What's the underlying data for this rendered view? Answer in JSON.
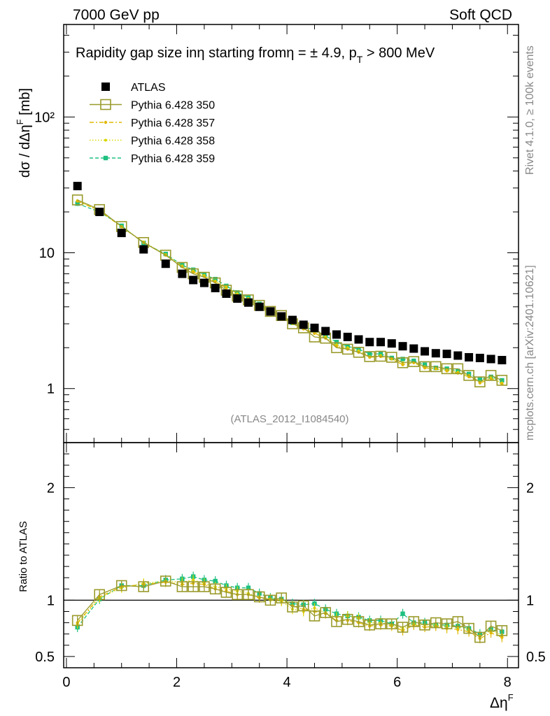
{
  "header": {
    "left": "7000 GeV pp",
    "right": "Soft QCD"
  },
  "side_labels": {
    "rivet": "Rivet 4.1.0, ≥ 100k events",
    "mcplots": "mcplots.cern.ch [arXiv:2401.10621]"
  },
  "chart_data": {
    "type": "scatter",
    "title": "Rapidity gap size inη starting fromη = ± 4.9, p_T > 800 MeV",
    "title_parts": {
      "main": "Rapidity gap size inη starting fromη = ± 4.9, p",
      "sub": "T",
      "tail": " > 800 MeV"
    },
    "watermark": "(ATLAS_2012_I1084540)",
    "xlabel": "Δη",
    "xlabel_sup": "F",
    "ylabel": "dσ / dΔη",
    "ylabel_sup": "F",
    "ylabel_unit": " [mb]",
    "ratio_ylabel": "Ratio to ATLAS",
    "xlim": [
      -0.05,
      8.2
    ],
    "ylim": [
      0.4,
      480
    ],
    "ratio_ylim": [
      0.4,
      2.4
    ],
    "yscale": "log",
    "x_ticks": [
      0,
      2,
      4,
      6,
      8
    ],
    "x_tick_labels": [
      "0",
      "2",
      "4",
      "6",
      "8"
    ],
    "y_ticks": [
      1,
      10,
      100
    ],
    "y_tick_labels": [
      "1",
      "10",
      "10²"
    ],
    "ratio_y_ticks": [
      0.5,
      1,
      2
    ],
    "ratio_y_tick_labels": [
      "0.5",
      "1",
      "2"
    ],
    "x": [
      0.2,
      0.6,
      1.0,
      1.4,
      1.8,
      2.1,
      2.3,
      2.5,
      2.7,
      2.9,
      3.1,
      3.3,
      3.5,
      3.7,
      3.9,
      4.1,
      4.3,
      4.5,
      4.7,
      4.9,
      5.1,
      5.3,
      5.5,
      5.7,
      5.9,
      6.1,
      6.3,
      6.5,
      6.7,
      6.9,
      7.1,
      7.3,
      7.5,
      7.7,
      7.9
    ],
    "series": [
      {
        "name": "ATLAS",
        "color": "#000000",
        "marker": "filled-square",
        "values": [
          31,
          20,
          14,
          10.6,
          8.3,
          7.0,
          6.3,
          6.0,
          5.5,
          5.0,
          4.6,
          4.3,
          4.0,
          3.7,
          3.4,
          3.2,
          2.95,
          2.8,
          2.65,
          2.5,
          2.4,
          2.3,
          2.2,
          2.2,
          2.15,
          2.05,
          1.97,
          1.88,
          1.82,
          1.8,
          1.75,
          1.7,
          1.68,
          1.65,
          1.62
        ]
      },
      {
        "name": "Pythia 6.428 350",
        "color": "#9a9a2c",
        "marker": "open-square",
        "line": "solid",
        "values": [
          24.5,
          20.8,
          15.6,
          11.9,
          9.6,
          7.8,
          7.0,
          6.6,
          6.0,
          5.3,
          4.8,
          4.5,
          4.1,
          3.7,
          3.45,
          3.0,
          2.8,
          2.4,
          2.35,
          2.0,
          1.95,
          1.85,
          1.72,
          1.73,
          1.7,
          1.55,
          1.58,
          1.45,
          1.45,
          1.4,
          1.4,
          1.25,
          1.12,
          1.25,
          1.15
        ],
        "ratio": [
          0.82,
          1.05,
          1.13,
          1.12,
          1.17,
          1.12,
          1.12,
          1.12,
          1.1,
          1.07,
          1.05,
          1.05,
          1.03,
          1.0,
          1.02,
          0.94,
          0.95,
          0.86,
          0.89,
          0.81,
          0.83,
          0.81,
          0.78,
          0.79,
          0.79,
          0.76,
          0.81,
          0.78,
          0.8,
          0.79,
          0.81,
          0.75,
          0.67,
          0.77,
          0.73
        ]
      },
      {
        "name": "Pythia 6.428 357",
        "color": "#e0b800",
        "marker": "star",
        "line": "dashdot",
        "values": [
          24.0,
          20.4,
          15.5,
          11.9,
          9.6,
          7.9,
          7.2,
          6.7,
          6.1,
          5.5,
          4.9,
          4.5,
          4.1,
          3.75,
          3.4,
          3.05,
          2.75,
          2.55,
          2.35,
          2.05,
          1.95,
          1.85,
          1.7,
          1.72,
          1.65,
          1.5,
          1.55,
          1.42,
          1.4,
          1.35,
          1.3,
          1.22,
          1.1,
          1.18,
          1.08
        ],
        "ratio": [
          0.8,
          1.03,
          1.12,
          1.14,
          1.16,
          1.14,
          1.15,
          1.14,
          1.1,
          1.08,
          1.05,
          1.05,
          1.02,
          1.01,
          1.0,
          0.95,
          0.92,
          0.9,
          0.88,
          0.82,
          0.82,
          0.8,
          0.77,
          0.78,
          0.77,
          0.73,
          0.78,
          0.76,
          0.77,
          0.75,
          0.74,
          0.72,
          0.66,
          0.71,
          0.67
        ]
      },
      {
        "name": "Pythia 6.428 358",
        "color": "#d8d800",
        "marker": "dot",
        "line": "dotted",
        "values": [
          24.2,
          20.5,
          15.6,
          12.0,
          9.7,
          8.0,
          7.3,
          6.8,
          6.2,
          5.6,
          5.0,
          4.6,
          4.2,
          3.75,
          3.4,
          3.0,
          2.75,
          2.6,
          2.4,
          2.1,
          2.0,
          1.9,
          1.72,
          1.75,
          1.65,
          1.55,
          1.55,
          1.45,
          1.4,
          1.38,
          1.32,
          1.25,
          1.12,
          1.2,
          1.1
        ],
        "ratio": [
          0.79,
          1.02,
          1.11,
          1.15,
          1.17,
          1.16,
          1.18,
          1.15,
          1.12,
          1.1,
          1.08,
          1.06,
          1.03,
          1.0,
          0.99,
          0.92,
          0.9,
          0.93,
          0.89,
          0.85,
          0.86,
          0.84,
          0.8,
          0.8,
          0.78,
          0.75,
          0.79,
          0.78,
          0.78,
          0.77,
          0.76,
          0.74,
          0.68,
          0.73,
          0.69
        ]
      },
      {
        "name": "Pythia 6.428 359",
        "color": "#1ec080",
        "marker": "filled-square-small",
        "line": "dashed",
        "values": [
          23.0,
          20.0,
          15.8,
          11.8,
          9.8,
          8.1,
          7.5,
          6.9,
          6.4,
          5.7,
          5.1,
          4.7,
          4.2,
          3.75,
          3.45,
          3.05,
          2.85,
          2.7,
          2.45,
          2.2,
          2.05,
          1.95,
          1.8,
          1.8,
          1.68,
          1.65,
          1.6,
          1.5,
          1.42,
          1.4,
          1.35,
          1.28,
          1.17,
          1.22,
          1.15
        ],
        "ratio": [
          0.76,
          1.01,
          1.13,
          1.13,
          1.18,
          1.19,
          1.21,
          1.18,
          1.17,
          1.13,
          1.11,
          1.11,
          1.06,
          1.02,
          1.01,
          0.97,
          0.96,
          0.97,
          0.92,
          0.88,
          0.86,
          0.85,
          0.82,
          0.82,
          0.79,
          0.88,
          0.8,
          0.8,
          0.78,
          0.78,
          0.77,
          0.75,
          0.7,
          0.74,
          0.72
        ]
      }
    ]
  }
}
